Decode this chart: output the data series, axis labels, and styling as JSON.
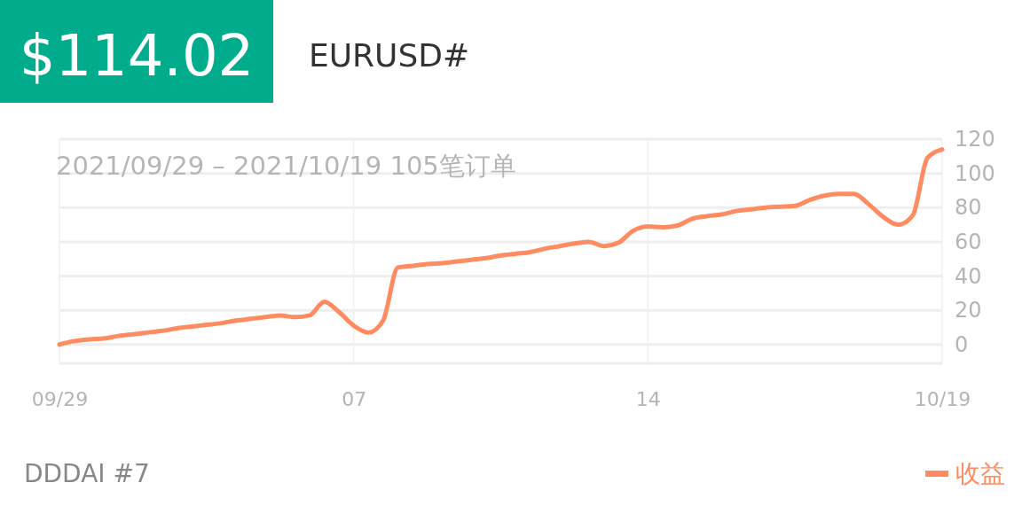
{
  "chart_data": {
    "type": "line",
    "title": "EURUSD#",
    "subtitle": "2021/09/29 – 2021/10/19  105笔订单",
    "annotations": [
      "$114.02",
      "DDDAI #7"
    ],
    "categories": [
      "09/29",
      null,
      null,
      null,
      null,
      null,
      null,
      null,
      null,
      null,
      null,
      null,
      null,
      null,
      null,
      null,
      null,
      null,
      null,
      null,
      "07",
      null,
      null,
      null,
      null,
      null,
      null,
      null,
      null,
      null,
      null,
      null,
      null,
      null,
      null,
      null,
      null,
      null,
      null,
      null,
      "14",
      null,
      null,
      null,
      null,
      null,
      null,
      null,
      null,
      null,
      null,
      null,
      null,
      null,
      null,
      null,
      null,
      null,
      null,
      null,
      "10/19"
    ],
    "series": [
      {
        "name": "收益",
        "color": "#ff8c61",
        "values": [
          0,
          2,
          3,
          3.5,
          5,
          6,
          7,
          8,
          9.5,
          10.5,
          11.5,
          12.5,
          14,
          15,
          16,
          17,
          16,
          17,
          25,
          19,
          11,
          7,
          14,
          45,
          46,
          47,
          47.5,
          48.5,
          49.5,
          50.5,
          52,
          53,
          54,
          56,
          57.5,
          59,
          60,
          57.5,
          59.5,
          66.5,
          69,
          68.5,
          69.5,
          73.5,
          75,
          76,
          78,
          79,
          80,
          80.5,
          81,
          84.5,
          87,
          88,
          88,
          82,
          74.5,
          70,
          75.5,
          109,
          114
        ]
      }
    ],
    "ylim": [
      -11,
      120
    ],
    "yticks": [
      0,
      20,
      40,
      60,
      80,
      100,
      120
    ],
    "grid": true,
    "legend": "bottom right",
    "marker": "none",
    "line_style": "solid"
  }
}
